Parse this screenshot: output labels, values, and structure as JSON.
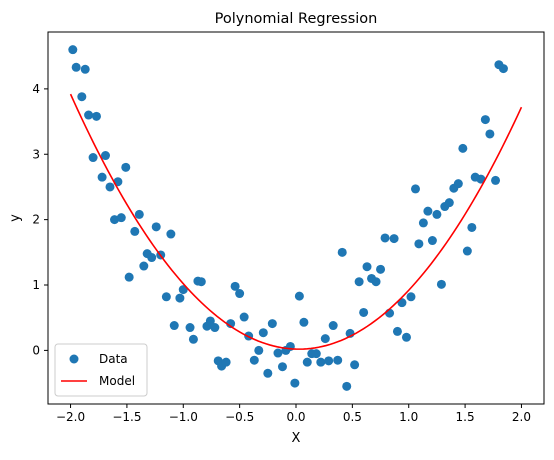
{
  "chart_data": {
    "type": "scatter",
    "title": "Polynomial Regression",
    "xlabel": "X",
    "ylabel": "y",
    "xlim": [
      -2.2,
      2.2
    ],
    "ylim": [
      -0.82,
      4.87
    ],
    "x_ticks": [
      -2.0,
      -1.5,
      -1.0,
      -0.5,
      0.0,
      0.5,
      1.0,
      1.5,
      2.0
    ],
    "x_tick_labels": [
      "−2.0",
      "−1.5",
      "−1.0",
      "−0.5",
      "0.0",
      "0.5",
      "1.0",
      "1.5",
      "2.0"
    ],
    "y_ticks": [
      0,
      1,
      2,
      3,
      4
    ],
    "y_tick_labels": [
      "0",
      "1",
      "2",
      "3",
      "4"
    ],
    "grid": false,
    "legend": {
      "placement": "lower-left",
      "entries": [
        {
          "label": "Data",
          "kind": "marker"
        },
        {
          "label": "Model",
          "kind": "line"
        }
      ]
    },
    "series": [
      {
        "name": "Data",
        "kind": "scatter",
        "color": "#1f77b4",
        "points": [
          [
            -1.98,
            4.6
          ],
          [
            -1.95,
            4.33
          ],
          [
            -1.9,
            3.88
          ],
          [
            -1.87,
            4.3
          ],
          [
            -1.84,
            3.6
          ],
          [
            -1.8,
            2.95
          ],
          [
            -1.77,
            3.58
          ],
          [
            -1.72,
            2.65
          ],
          [
            -1.69,
            2.98
          ],
          [
            -1.65,
            2.5
          ],
          [
            -1.61,
            2.0
          ],
          [
            -1.58,
            2.58
          ],
          [
            -1.55,
            2.03
          ],
          [
            -1.51,
            2.8
          ],
          [
            -1.48,
            1.12
          ],
          [
            -1.43,
            1.82
          ],
          [
            -1.39,
            2.08
          ],
          [
            -1.35,
            1.29
          ],
          [
            -1.32,
            1.48
          ],
          [
            -1.28,
            1.42
          ],
          [
            -1.24,
            1.89
          ],
          [
            -1.2,
            1.46
          ],
          [
            -1.15,
            0.82
          ],
          [
            -1.11,
            1.78
          ],
          [
            -1.08,
            0.38
          ],
          [
            -1.03,
            0.8
          ],
          [
            -1.0,
            0.93
          ],
          [
            -0.94,
            0.35
          ],
          [
            -0.91,
            0.17
          ],
          [
            -0.87,
            1.06
          ],
          [
            -0.84,
            1.05
          ],
          [
            -0.79,
            0.37
          ],
          [
            -0.76,
            0.45
          ],
          [
            -0.72,
            0.35
          ],
          [
            -0.69,
            -0.16
          ],
          [
            -0.66,
            -0.24
          ],
          [
            -0.62,
            -0.18
          ],
          [
            -0.58,
            0.41
          ],
          [
            -0.54,
            0.98
          ],
          [
            -0.5,
            0.87
          ],
          [
            -0.46,
            0.51
          ],
          [
            -0.42,
            0.22
          ],
          [
            -0.37,
            -0.15
          ],
          [
            -0.33,
            0.0
          ],
          [
            -0.29,
            0.27
          ],
          [
            -0.25,
            -0.35
          ],
          [
            -0.21,
            0.41
          ],
          [
            -0.16,
            -0.04
          ],
          [
            -0.12,
            -0.25
          ],
          [
            -0.09,
            0.0
          ],
          [
            -0.05,
            0.06
          ],
          [
            -0.01,
            -0.5
          ],
          [
            0.03,
            0.83
          ],
          [
            0.07,
            0.43
          ],
          [
            0.1,
            -0.18
          ],
          [
            0.14,
            -0.05
          ],
          [
            0.18,
            -0.05
          ],
          [
            0.22,
            -0.18
          ],
          [
            0.26,
            0.18
          ],
          [
            0.29,
            -0.16
          ],
          [
            0.33,
            0.38
          ],
          [
            0.37,
            -0.15
          ],
          [
            0.41,
            1.5
          ],
          [
            0.45,
            -0.55
          ],
          [
            0.48,
            0.26
          ],
          [
            0.52,
            -0.22
          ],
          [
            0.56,
            1.05
          ],
          [
            0.6,
            0.58
          ],
          [
            0.63,
            1.28
          ],
          [
            0.67,
            1.1
          ],
          [
            0.71,
            1.05
          ],
          [
            0.75,
            1.24
          ],
          [
            0.79,
            1.72
          ],
          [
            0.83,
            0.57
          ],
          [
            0.87,
            1.71
          ],
          [
            0.9,
            0.29
          ],
          [
            0.94,
            0.73
          ],
          [
            0.98,
            0.2
          ],
          [
            1.02,
            0.82
          ],
          [
            1.06,
            2.47
          ],
          [
            1.09,
            1.63
          ],
          [
            1.13,
            1.95
          ],
          [
            1.17,
            2.13
          ],
          [
            1.21,
            1.68
          ],
          [
            1.25,
            2.08
          ],
          [
            1.29,
            1.01
          ],
          [
            1.32,
            2.2
          ],
          [
            1.36,
            2.26
          ],
          [
            1.4,
            2.48
          ],
          [
            1.44,
            2.55
          ],
          [
            1.48,
            3.09
          ],
          [
            1.52,
            1.52
          ],
          [
            1.56,
            1.88
          ],
          [
            1.59,
            2.65
          ],
          [
            1.64,
            2.62
          ],
          [
            1.68,
            3.53
          ],
          [
            1.72,
            3.31
          ],
          [
            1.77,
            2.6
          ],
          [
            1.8,
            4.37
          ],
          [
            1.84,
            4.31
          ]
        ]
      },
      {
        "name": "Model",
        "kind": "line",
        "color": "#ff0000",
        "fit": {
          "a": 0.95,
          "b": -0.05,
          "c": 0.02
        },
        "x_range": [
          -2.0,
          2.0
        ]
      }
    ]
  }
}
